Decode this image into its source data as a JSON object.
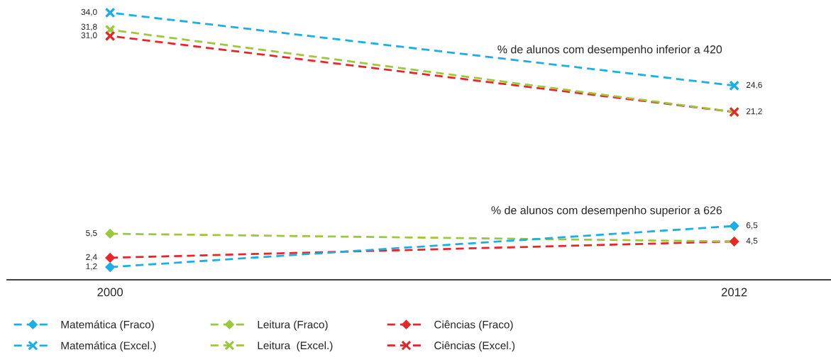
{
  "chart_data": {
    "type": "line",
    "categories": [
      "2000",
      "2012"
    ],
    "series": [
      {
        "name": "Matemática (Fraco)",
        "color": "#1aafe6",
        "marker": "diamond",
        "values": [
          1.2,
          6.5
        ],
        "value_labels": [
          "1,2",
          "6,5"
        ]
      },
      {
        "name": "Leitura (Fraco)",
        "color": "#9bc83c",
        "marker": "diamond",
        "values": [
          5.5,
          4.5
        ],
        "value_labels": [
          "5,5",
          null
        ]
      },
      {
        "name": "Ciências (Fraco)",
        "color": "#e8262a",
        "marker": "diamond",
        "values": [
          2.4,
          4.5
        ],
        "value_labels": [
          "2,4",
          "4,5"
        ]
      },
      {
        "name": "Matemática (Excel.)",
        "color": "#1aafe6",
        "marker": "cross",
        "values": [
          34.0,
          24.6
        ],
        "value_labels": [
          "34,0",
          "24,6"
        ]
      },
      {
        "name": "Leitura  (Excel.)",
        "color": "#9bc83c",
        "marker": "cross",
        "values": [
          31.8,
          21.2
        ],
        "value_labels": [
          "31,8",
          null
        ]
      },
      {
        "name": "Ciências (Excel.)",
        "color": "#e8262a",
        "marker": "cross",
        "values": [
          31.0,
          21.2
        ],
        "value_labels": [
          "31,0",
          "21,2"
        ]
      }
    ],
    "tick_labels": "x",
    "line_style": "dashed",
    "grid": false,
    "legend": "bottom",
    "annotations": [
      "% de alunos com desempenho inferior a 420",
      "% de alunos com desempenho superior a 626"
    ]
  }
}
